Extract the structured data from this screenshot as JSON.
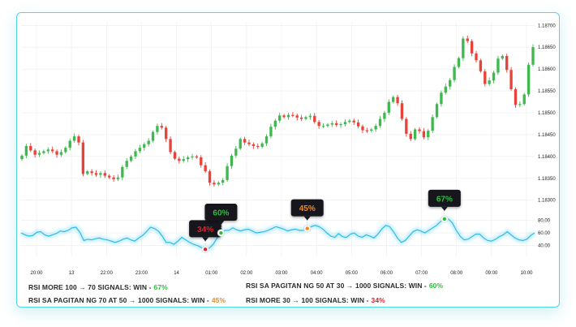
{
  "chart_data": {
    "type": "candlestick",
    "y_axis": {
      "labels": [
        "1.18700",
        "1.18650",
        "1.18600",
        "1.18550",
        "1.18500",
        "1.18450",
        "1.18400",
        "1.18350",
        "1.18300"
      ],
      "range": [
        1.18292,
        1.18708
      ]
    },
    "x_axis": {
      "labels": [
        "20:00",
        "13",
        "22:00",
        "23:00",
        "14",
        "01:00",
        "02:00",
        "03:00",
        "04:00",
        "05:00",
        "06:00",
        "07:00",
        "08:00",
        "09:00",
        "10:00"
      ]
    },
    "close": [
      1.18402,
      1.18424,
      1.18414,
      1.18404,
      1.18408,
      1.18412,
      1.18416,
      1.18412,
      1.18404,
      1.1841,
      1.1842,
      1.18436,
      1.18446,
      1.18432,
      1.1836,
      1.18366,
      1.18362,
      1.18358,
      1.18362,
      1.18356,
      1.18352,
      1.18348,
      1.18352,
      1.18376,
      1.1839,
      1.184,
      1.18412,
      1.1842,
      1.18428,
      1.18436,
      1.18456,
      1.1847,
      1.18466,
      1.1844,
      1.1841,
      1.18395,
      1.1839,
      1.18394,
      1.18398,
      1.184,
      1.18398,
      1.1838,
      1.18366,
      1.1834,
      1.18336,
      1.1834,
      1.18346,
      1.18378,
      1.18402,
      1.18418,
      1.1844,
      1.18432,
      1.18428,
      1.18424,
      1.18422,
      1.1843,
      1.18446,
      1.18468,
      1.18482,
      1.18494,
      1.1849,
      1.18495,
      1.18494,
      1.18489,
      1.18486,
      1.1849,
      1.18493,
      1.18479,
      1.1847,
      1.1847,
      1.18473,
      1.18476,
      1.18472,
      1.18474,
      1.18479,
      1.18482,
      1.18478,
      1.18469,
      1.1846,
      1.18459,
      1.18462,
      1.1847,
      1.18486,
      1.185,
      1.18525,
      1.18536,
      1.18522,
      1.18486,
      1.18452,
      1.1844,
      1.18462,
      1.18458,
      1.18444,
      1.18459,
      1.1849,
      1.1852,
      1.18546,
      1.1856,
      1.18575,
      1.18605,
      1.18625,
      1.1867,
      1.18664,
      1.18636,
      1.1862,
      1.18595,
      1.18566,
      1.18574,
      1.18592,
      1.18624,
      1.1863,
      1.18598,
      1.18554,
      1.18518,
      1.1852,
      1.18542,
      1.1861,
      1.1865
    ],
    "rsi": {
      "axis_labels": [
        "80.00",
        "60.00",
        "40.00"
      ],
      "range": [
        28,
        96
      ],
      "values": [
        60,
        57,
        55,
        56,
        61,
        62,
        57,
        55,
        57,
        59,
        63,
        62,
        64,
        68,
        69,
        61,
        48,
        50,
        49,
        51,
        52,
        50,
        49,
        47,
        45,
        47,
        50,
        52,
        49,
        47,
        52,
        56,
        62,
        69,
        67,
        63,
        55,
        45,
        45,
        42,
        47,
        53,
        49,
        45,
        42,
        40,
        37,
        34,
        36,
        42,
        52,
        60,
        64,
        64,
        68,
        65,
        63,
        65,
        66,
        63,
        60,
        61,
        62,
        64,
        67,
        70,
        68,
        66,
        63,
        65,
        66,
        64,
        64,
        67,
        70,
        72,
        70,
        66,
        60,
        55,
        53,
        59,
        54,
        53,
        58,
        60,
        55,
        53,
        57,
        55,
        52,
        58,
        66,
        72,
        70,
        62,
        52,
        45,
        48,
        55,
        62,
        65,
        63,
        60,
        64,
        68,
        72,
        78,
        82,
        82,
        76,
        64,
        55,
        49,
        50,
        54,
        58,
        58,
        52,
        48,
        47,
        50,
        54,
        57,
        62,
        57,
        52,
        49,
        48,
        50,
        56,
        60
      ]
    },
    "signals": [
      {
        "label": "34%",
        "color": "#e0202a",
        "rsi_index": 47
      },
      {
        "label": "60%",
        "color": "#2bbf3a",
        "rsi_index": 51
      },
      {
        "label": "45%",
        "color": "#f08a24",
        "rsi_index": 73
      },
      {
        "label": "67%",
        "color": "#2bbf3a",
        "rsi_index": 108
      }
    ],
    "colors": {
      "up": "#3fb94f",
      "down": "#e8433a",
      "rsi_line": "#5fd3f0",
      "grid": "#ececec"
    }
  },
  "legend": {
    "rows": [
      {
        "text": "RSI MORE 100 → 70 SIGNALS: WIN -",
        "pct": "67%",
        "tone": "green"
      },
      {
        "text": "RSI SA PAGITAN NG 50 AT 30 → 1000 SIGNALS: WIN -",
        "pct": "60%",
        "tone": "green"
      },
      {
        "text": "RSI SA PAGITAN NG 70 AT 50 → 1000 SIGNALS: WIN -",
        "pct": "45%",
        "tone": "orange"
      },
      {
        "text": "RSI MORE 30 → 100 SIGNALS: WIN -",
        "pct": "34%",
        "tone": "red"
      }
    ]
  }
}
